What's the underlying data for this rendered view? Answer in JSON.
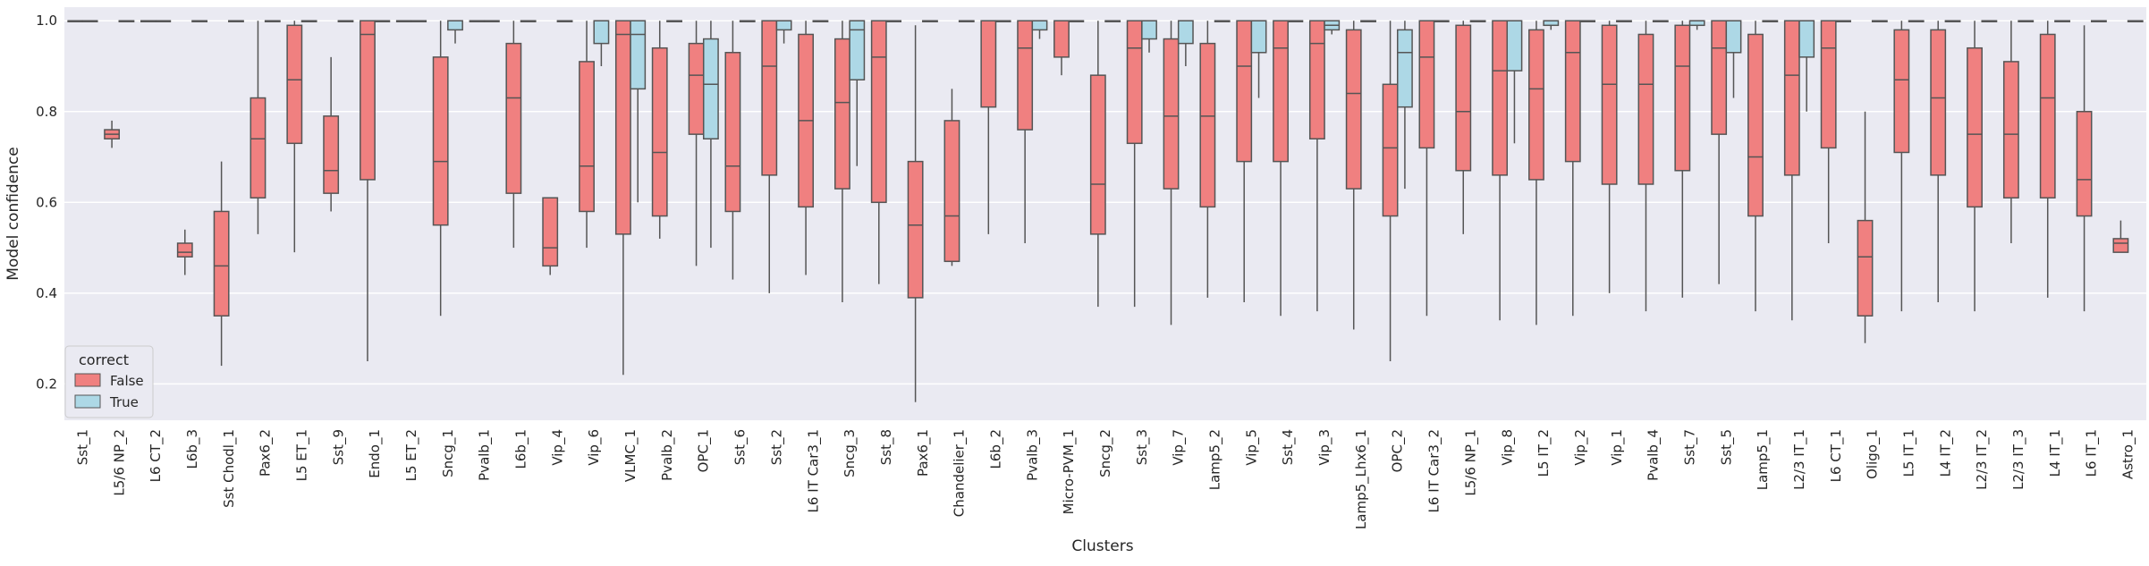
{
  "chart_data": {
    "type": "box",
    "xlabel": "Clusters",
    "ylabel": "Model confidence",
    "ylim": [
      0.12,
      1.03
    ],
    "yticks": [
      0.2,
      0.4,
      0.6,
      0.8,
      1.0
    ],
    "ytick_labels": [
      "0.2",
      "0.4",
      "0.6",
      "0.8",
      "1.0"
    ],
    "grid": true,
    "legend": {
      "title": "correct",
      "placement": "bottom-left",
      "entries": [
        {
          "label": "False",
          "color": "#f08080"
        },
        {
          "label": "True",
          "color": "#add8e6"
        }
      ]
    },
    "colors": {
      "False": "#f08080",
      "True": "#add8e6",
      "background": "#eaeaf2",
      "grid": "#ffffff",
      "line": "#555555"
    },
    "categories": [
      "Sst_1",
      "L5/6 NP_2",
      "L6 CT_2",
      "L6b_3",
      "Sst Chodl_1",
      "Pax6_2",
      "L5 ET_1",
      "Sst_9",
      "Endo_1",
      "L5 ET_2",
      "Sncg_1",
      "Pvalb_1",
      "L6b_1",
      "Vip_4",
      "Vip_6",
      "VLMC_1",
      "Pvalb_2",
      "OPC_1",
      "Sst_6",
      "Sst_2",
      "L6 IT Car3_1",
      "Sncg_3",
      "Sst_8",
      "Pax6_1",
      "Chandelier_1",
      "L6b_2",
      "Pvalb_3",
      "Micro-PVM_1",
      "Sncg_2",
      "Sst_3",
      "Vip_7",
      "Lamp5_2",
      "Vip_5",
      "Sst_4",
      "Vip_3",
      "Lamp5_Lhx6_1",
      "OPC_2",
      "L6 IT Car3_2",
      "L5/6 NP_1",
      "Vip_8",
      "L5 IT_2",
      "Vip_2",
      "Vip_1",
      "Pvalb_4",
      "Sst_7",
      "Sst_5",
      "Lamp5_1",
      "L2/3 IT_1",
      "L6 CT_1",
      "Oligo_1",
      "L5 IT_1",
      "L4 IT_2",
      "L2/3 IT_2",
      "L2/3 IT_3",
      "L4 IT_1",
      "L6 IT_1",
      "Astro_1"
    ],
    "series": [
      {
        "name": "False",
        "boxes": [
          [
            1.0,
            1.0,
            1.0,
            1.0,
            1.0
          ],
          [
            0.72,
            0.74,
            0.75,
            0.76,
            0.78
          ],
          [
            1.0,
            1.0,
            1.0,
            1.0,
            1.0
          ],
          [
            0.44,
            0.48,
            0.49,
            0.51,
            0.54
          ],
          [
            0.24,
            0.35,
            0.46,
            0.58,
            0.69
          ],
          [
            0.53,
            0.61,
            0.74,
            0.83,
            1.0
          ],
          [
            0.49,
            0.73,
            0.87,
            0.99,
            1.0
          ],
          [
            0.58,
            0.62,
            0.67,
            0.79,
            0.92
          ],
          [
            0.25,
            0.65,
            0.97,
            1.0,
            1.0
          ],
          [
            1.0,
            1.0,
            1.0,
            1.0,
            1.0
          ],
          [
            0.35,
            0.55,
            0.69,
            0.92,
            1.0
          ],
          [
            1.0,
            1.0,
            1.0,
            1.0,
            1.0
          ],
          [
            0.5,
            0.62,
            0.83,
            0.95,
            1.0
          ],
          [
            0.44,
            0.46,
            0.5,
            0.61,
            0.61
          ],
          [
            0.5,
            0.58,
            0.68,
            0.91,
            1.0
          ],
          [
            0.22,
            0.53,
            0.97,
            1.0,
            1.0
          ],
          [
            0.52,
            0.57,
            0.71,
            0.94,
            1.0
          ],
          [
            0.46,
            0.75,
            0.88,
            0.95,
            1.0
          ],
          [
            0.43,
            0.58,
            0.68,
            0.93,
            1.0
          ],
          [
            0.4,
            0.66,
            0.9,
            1.0,
            1.0
          ],
          [
            0.44,
            0.59,
            0.78,
            0.97,
            1.0
          ],
          [
            0.38,
            0.63,
            0.82,
            0.96,
            1.0
          ],
          [
            0.42,
            0.6,
            0.92,
            1.0,
            1.0
          ],
          [
            0.16,
            0.39,
            0.55,
            0.69,
            0.99
          ],
          [
            0.46,
            0.47,
            0.57,
            0.78,
            0.85
          ],
          [
            0.53,
            0.81,
            1.0,
            1.0,
            1.0
          ],
          [
            0.51,
            0.76,
            0.94,
            1.0,
            1.0
          ],
          [
            0.88,
            0.92,
            1.0,
            1.0,
            1.0
          ],
          [
            0.37,
            0.53,
            0.64,
            0.88,
            1.0
          ],
          [
            0.37,
            0.73,
            0.94,
            1.0,
            1.0
          ],
          [
            0.33,
            0.63,
            0.79,
            0.96,
            1.0
          ],
          [
            0.39,
            0.59,
            0.79,
            0.95,
            1.0
          ],
          [
            0.38,
            0.69,
            0.9,
            1.0,
            1.0
          ],
          [
            0.35,
            0.69,
            0.94,
            1.0,
            1.0
          ],
          [
            0.36,
            0.74,
            0.95,
            1.0,
            1.0
          ],
          [
            0.32,
            0.63,
            0.84,
            0.98,
            1.0
          ],
          [
            0.25,
            0.57,
            0.72,
            0.86,
            1.0
          ],
          [
            0.35,
            0.72,
            0.92,
            1.0,
            1.0
          ],
          [
            0.53,
            0.67,
            0.8,
            0.99,
            1.0
          ],
          [
            0.34,
            0.66,
            0.89,
            1.0,
            1.0
          ],
          [
            0.33,
            0.65,
            0.85,
            0.98,
            1.0
          ],
          [
            0.35,
            0.69,
            0.93,
            1.0,
            1.0
          ],
          [
            0.4,
            0.64,
            0.86,
            0.99,
            1.0
          ],
          [
            0.36,
            0.64,
            0.86,
            0.97,
            1.0
          ],
          [
            0.39,
            0.67,
            0.9,
            0.99,
            1.0
          ],
          [
            0.42,
            0.75,
            0.94,
            1.0,
            1.0
          ],
          [
            0.36,
            0.57,
            0.7,
            0.97,
            1.0
          ],
          [
            0.34,
            0.66,
            0.88,
            1.0,
            1.0
          ],
          [
            0.51,
            0.72,
            0.94,
            1.0,
            1.0
          ],
          [
            0.29,
            0.35,
            0.48,
            0.56,
            0.8
          ],
          [
            0.36,
            0.71,
            0.87,
            0.98,
            1.0
          ],
          [
            0.38,
            0.66,
            0.83,
            0.98,
            1.0
          ],
          [
            0.36,
            0.59,
            0.75,
            0.94,
            1.0
          ],
          [
            0.51,
            0.61,
            0.75,
            0.91,
            1.0
          ],
          [
            0.39,
            0.61,
            0.83,
            0.97,
            1.0
          ],
          [
            0.36,
            0.57,
            0.65,
            0.8,
            0.99
          ],
          [
            0.49,
            0.49,
            0.51,
            0.52,
            0.56
          ]
        ]
      },
      {
        "name": "True",
        "boxes": [
          [
            1.0,
            1.0,
            1.0,
            1.0,
            1.0
          ],
          [
            1.0,
            1.0,
            1.0,
            1.0,
            1.0
          ],
          [
            1.0,
            1.0,
            1.0,
            1.0,
            1.0
          ],
          [
            1.0,
            1.0,
            1.0,
            1.0,
            1.0
          ],
          [
            1.0,
            1.0,
            1.0,
            1.0,
            1.0
          ],
          [
            1.0,
            1.0,
            1.0,
            1.0,
            1.0
          ],
          [
            1.0,
            1.0,
            1.0,
            1.0,
            1.0
          ],
          [
            1.0,
            1.0,
            1.0,
            1.0,
            1.0
          ],
          [
            1.0,
            1.0,
            1.0,
            1.0,
            1.0
          ],
          [
            1.0,
            1.0,
            1.0,
            1.0,
            1.0
          ],
          [
            0.95,
            0.98,
            1.0,
            1.0,
            1.0
          ],
          [
            1.0,
            1.0,
            1.0,
            1.0,
            1.0
          ],
          [
            1.0,
            1.0,
            1.0,
            1.0,
            1.0
          ],
          [
            1.0,
            1.0,
            1.0,
            1.0,
            1.0
          ],
          [
            0.9,
            0.95,
            1.0,
            1.0,
            1.0
          ],
          [
            0.6,
            0.85,
            0.97,
            1.0,
            1.0
          ],
          [
            1.0,
            1.0,
            1.0,
            1.0,
            1.0
          ],
          [
            0.5,
            0.74,
            0.86,
            0.96,
            1.0
          ],
          [
            1.0,
            1.0,
            1.0,
            1.0,
            1.0
          ],
          [
            0.95,
            0.98,
            1.0,
            1.0,
            1.0
          ],
          [
            1.0,
            1.0,
            1.0,
            1.0,
            1.0
          ],
          [
            0.68,
            0.87,
            0.98,
            1.0,
            1.0
          ],
          [
            1.0,
            1.0,
            1.0,
            1.0,
            1.0
          ],
          [
            1.0,
            1.0,
            1.0,
            1.0,
            1.0
          ],
          [
            1.0,
            1.0,
            1.0,
            1.0,
            1.0
          ],
          [
            1.0,
            1.0,
            1.0,
            1.0,
            1.0
          ],
          [
            0.96,
            0.98,
            1.0,
            1.0,
            1.0
          ],
          [
            1.0,
            1.0,
            1.0,
            1.0,
            1.0
          ],
          [
            1.0,
            1.0,
            1.0,
            1.0,
            1.0
          ],
          [
            0.93,
            0.96,
            1.0,
            1.0,
            1.0
          ],
          [
            0.9,
            0.95,
            1.0,
            1.0,
            1.0
          ],
          [
            1.0,
            1.0,
            1.0,
            1.0,
            1.0
          ],
          [
            0.83,
            0.93,
            1.0,
            1.0,
            1.0
          ],
          [
            1.0,
            1.0,
            1.0,
            1.0,
            1.0
          ],
          [
            0.97,
            0.98,
            0.99,
            1.0,
            1.0
          ],
          [
            1.0,
            1.0,
            1.0,
            1.0,
            1.0
          ],
          [
            0.63,
            0.81,
            0.93,
            0.98,
            1.0
          ],
          [
            1.0,
            1.0,
            1.0,
            1.0,
            1.0
          ],
          [
            1.0,
            1.0,
            1.0,
            1.0,
            1.0
          ],
          [
            0.73,
            0.89,
            1.0,
            1.0,
            1.0
          ],
          [
            0.98,
            0.99,
            1.0,
            1.0,
            1.0
          ],
          [
            1.0,
            1.0,
            1.0,
            1.0,
            1.0
          ],
          [
            1.0,
            1.0,
            1.0,
            1.0,
            1.0
          ],
          [
            1.0,
            1.0,
            1.0,
            1.0,
            1.0
          ],
          [
            0.98,
            0.99,
            1.0,
            1.0,
            1.0
          ],
          [
            0.83,
            0.93,
            1.0,
            1.0,
            1.0
          ],
          [
            1.0,
            1.0,
            1.0,
            1.0,
            1.0
          ],
          [
            0.8,
            0.92,
            1.0,
            1.0,
            1.0
          ],
          [
            1.0,
            1.0,
            1.0,
            1.0,
            1.0
          ],
          [
            1.0,
            1.0,
            1.0,
            1.0,
            1.0
          ],
          [
            1.0,
            1.0,
            1.0,
            1.0,
            1.0
          ],
          [
            1.0,
            1.0,
            1.0,
            1.0,
            1.0
          ],
          [
            1.0,
            1.0,
            1.0,
            1.0,
            1.0
          ],
          [
            1.0,
            1.0,
            1.0,
            1.0,
            1.0
          ],
          [
            1.0,
            1.0,
            1.0,
            1.0,
            1.0
          ],
          [
            1.0,
            1.0,
            1.0,
            1.0,
            1.0
          ],
          [
            1.0,
            1.0,
            1.0,
            1.0,
            1.0
          ]
        ]
      }
    ]
  }
}
